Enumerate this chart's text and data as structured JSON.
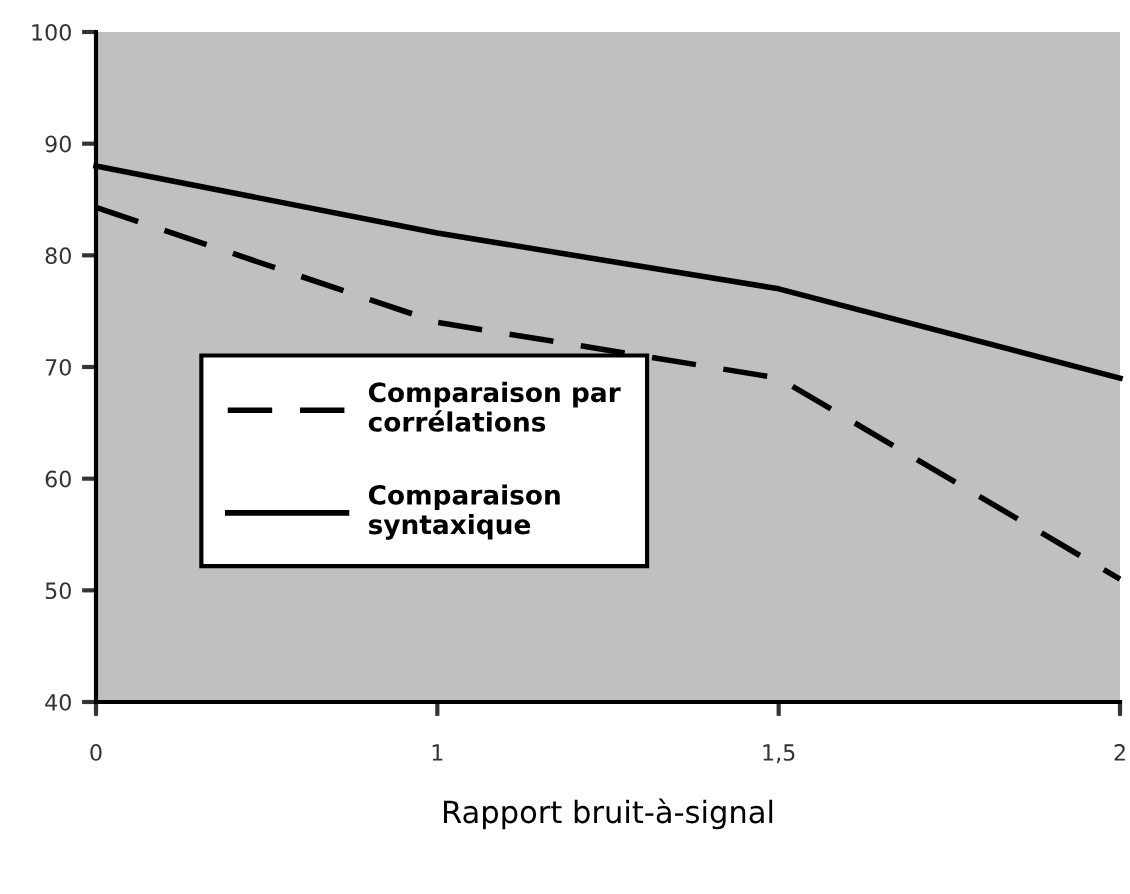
{
  "chart_data": {
    "type": "line",
    "xlabel": "Rapport bruit-à-signal",
    "categories": [
      "0",
      "1",
      "1,5",
      "2"
    ],
    "series": [
      {
        "name": "Comparaison par\ncorrélations",
        "color": "#000000",
        "line_style": "dashed",
        "values": [
          84.3,
          74,
          69,
          51
        ]
      },
      {
        "name": "Comparaison\nsyntaxique",
        "color": "#000000",
        "line_style": "solid",
        "values": [
          88,
          82,
          77,
          69
        ]
      }
    ],
    "ylim": [
      40,
      100
    ],
    "yticks": [
      40,
      50,
      60,
      70,
      80,
      90,
      100
    ],
    "grid": false,
    "legend": "center",
    "marker": "none"
  }
}
